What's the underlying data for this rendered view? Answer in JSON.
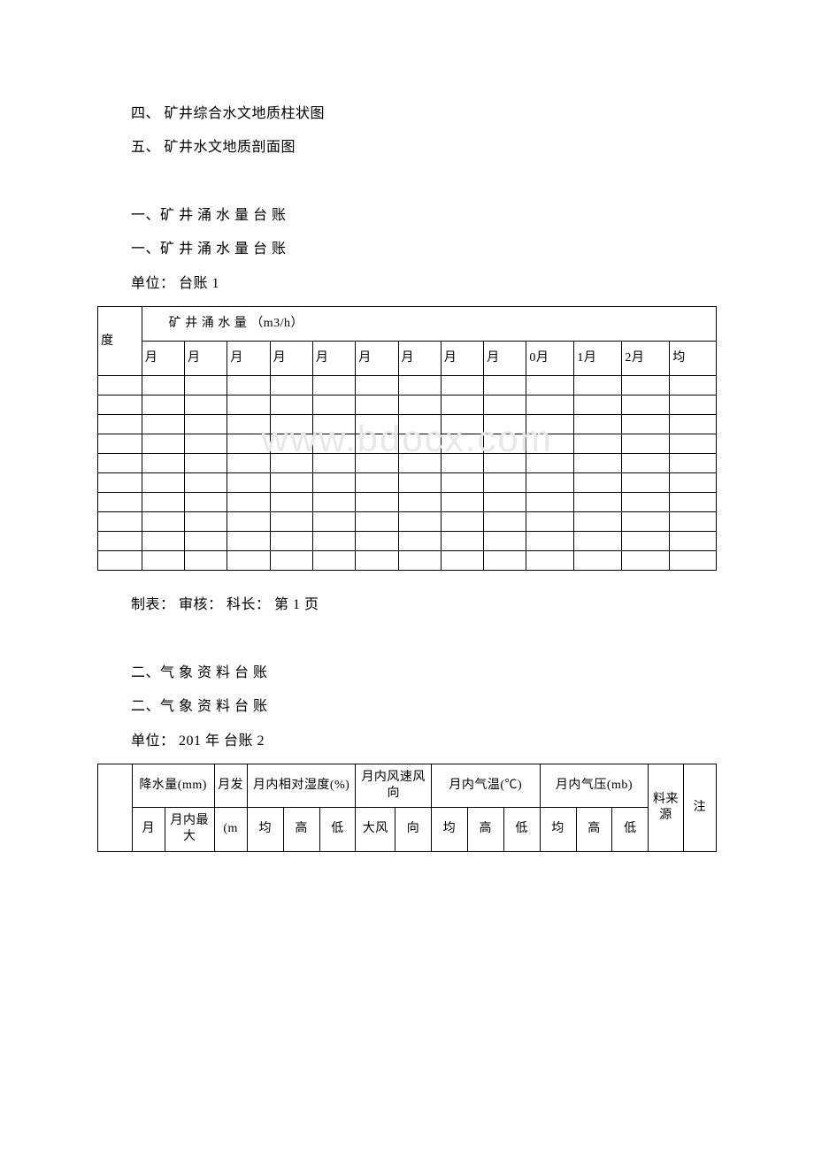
{
  "text_lines": {
    "item4": "四、 矿井综合水文地质柱状图",
    "item5": "五、 矿井水文地质剖面图",
    "section1_title_a": "一、矿 井 涌 水 量 台 账",
    "section1_title_b": "一、矿 井 涌 水 量 台 账",
    "section1_unit": "单位：  台账 1",
    "table1_footer": "制表：  审核：  科长：  第 1 页",
    "section2_title_a": "二、气 象 资 料 台 账",
    "section2_title_b": "二、气 象 资 料 台 账",
    "section2_unit": "单位：  201 年 台账 2"
  },
  "table1": {
    "top_header": "矿 井 涌 水 量 （m3/h）",
    "row_header": "度",
    "months": [
      "月",
      "月",
      "月",
      "月",
      "月",
      "月",
      "月",
      "月",
      "月",
      "0月",
      "1月",
      "2月",
      "均"
    ],
    "empty_rows": 10
  },
  "table2": {
    "group_headers": {
      "precip": "降水量(mm)",
      "evap": "月发",
      "humidity": "月内相对湿度(%)",
      "wind": "月内风速风向",
      "temp": "月内气温(℃)",
      "pressure": "月内气压(mb)",
      "source": "料来源",
      "note": "注"
    },
    "sub_headers": {
      "precip": [
        "月",
        "月内最大"
      ],
      "evap": "(m",
      "humidity": [
        "均",
        "高",
        "低"
      ],
      "wind": [
        "大风",
        "向"
      ],
      "temp": [
        "均",
        "高",
        "低"
      ],
      "pressure": [
        "均",
        "高",
        "低"
      ]
    }
  },
  "watermark": "www.bdocx.com"
}
